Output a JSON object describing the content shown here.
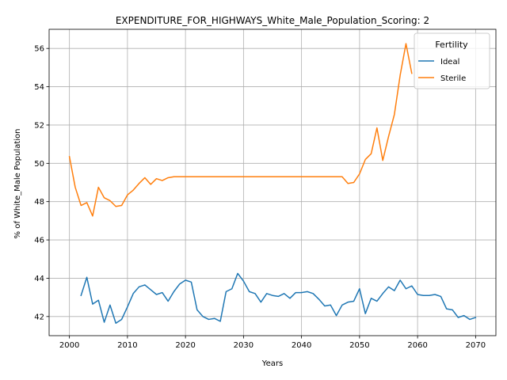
{
  "chart_data": {
    "type": "line",
    "title": "EXPENDITURE_FOR_HIGHWAYS_White_Male_Population_Scoring: 2",
    "xlabel": "Years",
    "ylabel": "% of White_Male Population",
    "xlim": [
      1996.5,
      2073.5
    ],
    "ylim": [
      41.0,
      57.0
    ],
    "xticks": [
      2000,
      2010,
      2020,
      2030,
      2040,
      2050,
      2060,
      2070
    ],
    "yticks": [
      42,
      44,
      46,
      48,
      50,
      52,
      54,
      56
    ],
    "grid": true,
    "legend": {
      "title": "Fertility",
      "position": "top-right"
    },
    "series": [
      {
        "name": "Ideal",
        "color": "#1f77b4",
        "x": [
          2002,
          2003,
          2004,
          2005,
          2006,
          2007,
          2008,
          2009,
          2010,
          2011,
          2012,
          2013,
          2014,
          2015,
          2016,
          2017,
          2018,
          2019,
          2020,
          2021,
          2022,
          2023,
          2024,
          2025,
          2026,
          2027,
          2028,
          2029,
          2030,
          2031,
          2032,
          2033,
          2034,
          2035,
          2036,
          2037,
          2038,
          2039,
          2040,
          2041,
          2042,
          2043,
          2044,
          2045,
          2046,
          2047,
          2048,
          2049,
          2050,
          2051,
          2052,
          2053,
          2054,
          2055,
          2056,
          2057,
          2058,
          2059,
          2060,
          2061,
          2062,
          2063,
          2064,
          2065,
          2066,
          2067,
          2068,
          2069,
          2070
        ],
        "values": [
          43.1,
          44.05,
          42.65,
          42.85,
          41.7,
          42.6,
          41.65,
          41.85,
          42.5,
          43.2,
          43.55,
          43.65,
          43.4,
          43.15,
          43.25,
          42.8,
          43.3,
          43.7,
          43.9,
          43.8,
          42.35,
          42.0,
          41.85,
          41.9,
          41.75,
          43.3,
          43.45,
          44.25,
          43.85,
          43.3,
          43.2,
          42.75,
          43.2,
          43.1,
          43.05,
          43.2,
          42.95,
          43.25,
          43.25,
          43.3,
          43.2,
          42.9,
          42.55,
          42.6,
          42.05,
          42.6,
          42.75,
          42.8,
          43.45,
          42.15,
          42.95,
          42.8,
          43.2,
          43.55,
          43.35,
          43.9,
          43.45,
          43.6,
          43.15,
          43.1,
          43.1,
          43.15,
          43.05,
          42.4,
          42.35,
          41.95,
          42.05,
          41.85,
          41.95
        ]
      },
      {
        "name": "Sterile",
        "color": "#ff7f0e",
        "x": [
          2000,
          2001,
          2002,
          2003,
          2004,
          2005,
          2006,
          2007,
          2008,
          2009,
          2010,
          2011,
          2012,
          2013,
          2014,
          2015,
          2016,
          2017,
          2018,
          2019,
          2020,
          2021,
          2022,
          2023,
          2024,
          2025,
          2026,
          2027,
          2028,
          2029,
          2030,
          2031,
          2032,
          2033,
          2034,
          2035,
          2036,
          2037,
          2038,
          2039,
          2040,
          2041,
          2042,
          2043,
          2044,
          2045,
          2046,
          2047,
          2048,
          2049,
          2050,
          2051,
          2052,
          2053,
          2054,
          2055,
          2056,
          2057,
          2058,
          2059
        ],
        "values": [
          50.35,
          48.75,
          47.8,
          47.95,
          47.25,
          48.75,
          48.2,
          48.05,
          47.75,
          47.8,
          48.35,
          48.6,
          48.95,
          49.25,
          48.9,
          49.2,
          49.1,
          49.25,
          49.3,
          49.3,
          49.3,
          49.3,
          49.3,
          49.3,
          49.3,
          49.3,
          49.3,
          49.3,
          49.3,
          49.3,
          49.3,
          49.3,
          49.3,
          49.3,
          49.3,
          49.3,
          49.3,
          49.3,
          49.3,
          49.3,
          49.3,
          49.3,
          49.3,
          49.3,
          49.3,
          49.3,
          49.3,
          49.3,
          48.95,
          49.0,
          49.45,
          50.2,
          50.5,
          51.85,
          50.15,
          51.4,
          52.55,
          54.6,
          56.25,
          54.7
        ]
      }
    ]
  }
}
